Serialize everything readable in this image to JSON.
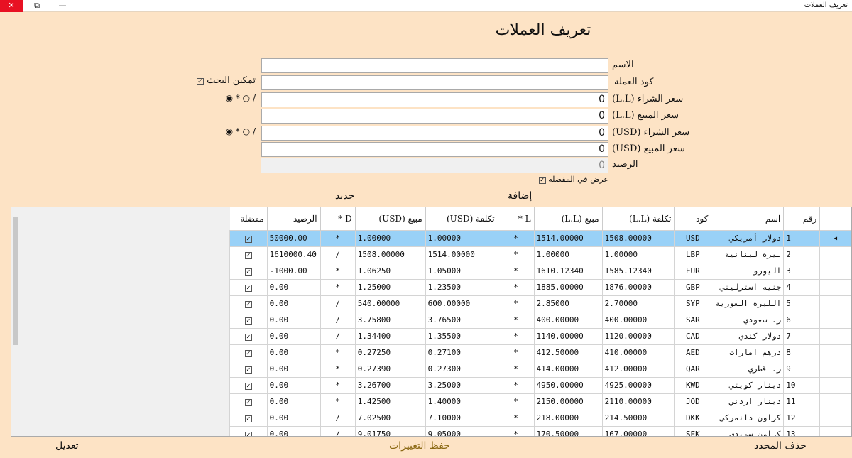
{
  "window": {
    "title": "تعريف العملات",
    "close": "✕",
    "max": "⧉",
    "min": "—"
  },
  "page_title": "تعريف العملات",
  "form": {
    "name_label": "الاسم",
    "name_value": "",
    "code_label": "كود العملة",
    "code_value": "",
    "buy_ll_label": "سعر الشراء (L.L)",
    "buy_ll_value": "0",
    "sell_ll_label": "سعر المبيع (L.L)",
    "sell_ll_value": "0",
    "buy_usd_label": "سعر الشراء (USD)",
    "buy_usd_value": "0",
    "sell_usd_label": "سعر المبيع (USD)",
    "sell_usd_value": "0",
    "balance_label": "الرصيد",
    "balance_value": "0",
    "enable_search": "تمكين البحث",
    "show_favorite": "عرض في المفضلة",
    "radio_ll": "◉ * ○ /",
    "radio_usd": "◉ * ○ /"
  },
  "buttons": {
    "add": "إضافة",
    "new": "جديد",
    "delete": "حذف المحدد",
    "save": "حفظ التغييرات",
    "edit": "تعديل"
  },
  "colors": {
    "background": "#fde3c5",
    "selected_row": "#99d1f7",
    "save_button": "#8b6914"
  },
  "grid": {
    "columns": [
      "رقم",
      "اسم",
      "كود",
      "تكلفة (L.L)",
      "مبيع (L.L)",
      "L *",
      "تكلفة (USD)",
      "مبيع (USD)",
      "D *",
      "الرصيد",
      "مفضلة"
    ],
    "rows": [
      [
        "1",
        "دولار أمريكي",
        "USD",
        "1508.00000",
        "1514.00000",
        "*",
        "1.00000",
        "1.00000",
        "*",
        "50000.00",
        true
      ],
      [
        "2",
        "ليرة لبنانية",
        "LBP",
        "1.00000",
        "1.00000",
        "*",
        "1514.00000",
        "1508.00000",
        "/",
        "1610000.40",
        true
      ],
      [
        "3",
        "اليورو",
        "EUR",
        "1585.12340",
        "1610.12340",
        "*",
        "1.05000",
        "1.06250",
        "*",
        "1000.00-",
        true
      ],
      [
        "4",
        "جنيه استرليني",
        "GBP",
        "1876.00000",
        "1885.00000",
        "*",
        "1.23500",
        "1.25000",
        "*",
        "0.00",
        true
      ],
      [
        "5",
        "الليرة السورية",
        "SYP",
        "2.70000",
        "2.85000",
        "*",
        "600.00000",
        "540.00000",
        "/",
        "0.00",
        true
      ],
      [
        "6",
        "ر. سعودي",
        "SAR",
        "400.00000",
        "400.00000",
        "*",
        "3.76500",
        "3.75800",
        "/",
        "0.00",
        true
      ],
      [
        "7",
        "دولار كندي",
        "CAD",
        "1120.00000",
        "1140.00000",
        "*",
        "1.35500",
        "1.34400",
        "/",
        "0.00",
        true
      ],
      [
        "8",
        "درهم امارات",
        "AED",
        "410.00000",
        "412.50000",
        "*",
        "0.27100",
        "0.27250",
        "*",
        "0.00",
        true
      ],
      [
        "9",
        "ر. قطري",
        "QAR",
        "412.00000",
        "414.00000",
        "*",
        "0.27300",
        "0.27390",
        "*",
        "0.00",
        true
      ],
      [
        "10",
        "دينار كويتي",
        "KWD",
        "4925.00000",
        "4950.00000",
        "*",
        "3.25000",
        "3.26700",
        "*",
        "0.00",
        true
      ],
      [
        "11",
        "دينار اردني",
        "JOD",
        "2110.00000",
        "2150.00000",
        "*",
        "1.40000",
        "1.42500",
        "*",
        "0.00",
        true
      ],
      [
        "12",
        "كراون دانمركي",
        "DKK",
        "214.50000",
        "218.00000",
        "*",
        "7.10000",
        "7.02500",
        "/",
        "0.00",
        true
      ],
      [
        "13",
        "كراون سويدي",
        "SEK",
        "167.00000",
        "170.50000",
        "*",
        "9.05000",
        "9.01750",
        "/",
        "0.00",
        true
      ]
    ]
  }
}
